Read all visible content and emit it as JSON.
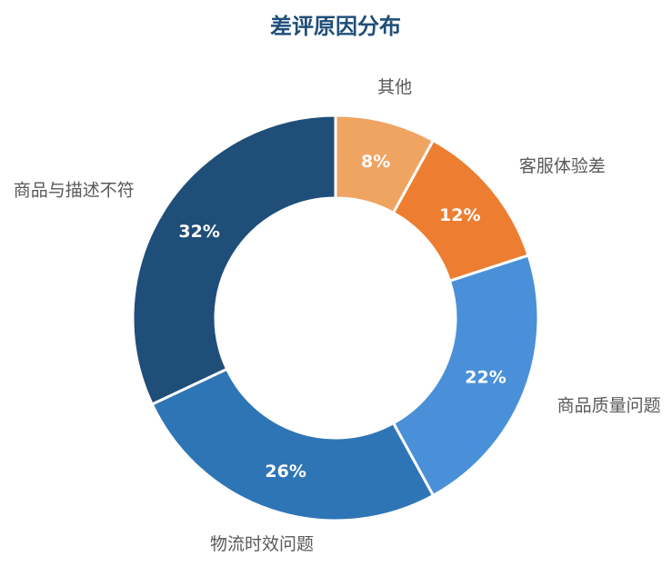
{
  "chart_data": {
    "type": "pie",
    "title": "差评原因分布",
    "donut": true,
    "start_angle_deg": 0,
    "direction": "clockwise",
    "slice_border_color": "#ffffff",
    "label_color": "#ffffff",
    "category_label_color": "#595959",
    "title_color": "#1f4e79",
    "slices": [
      {
        "label": "其他",
        "value": 8,
        "display": "8%",
        "color": "#f0a462"
      },
      {
        "label": "客服体验差",
        "value": 12,
        "display": "12%",
        "color": "#ed7d31"
      },
      {
        "label": "商品质量问题",
        "value": 22,
        "display": "22%",
        "color": "#4a90d9"
      },
      {
        "label": "物流时效问题",
        "value": 26,
        "display": "26%",
        "color": "#2e75b6"
      },
      {
        "label": "商品与描述不符",
        "value": 32,
        "display": "32%",
        "color": "#1f4e79"
      }
    ]
  }
}
